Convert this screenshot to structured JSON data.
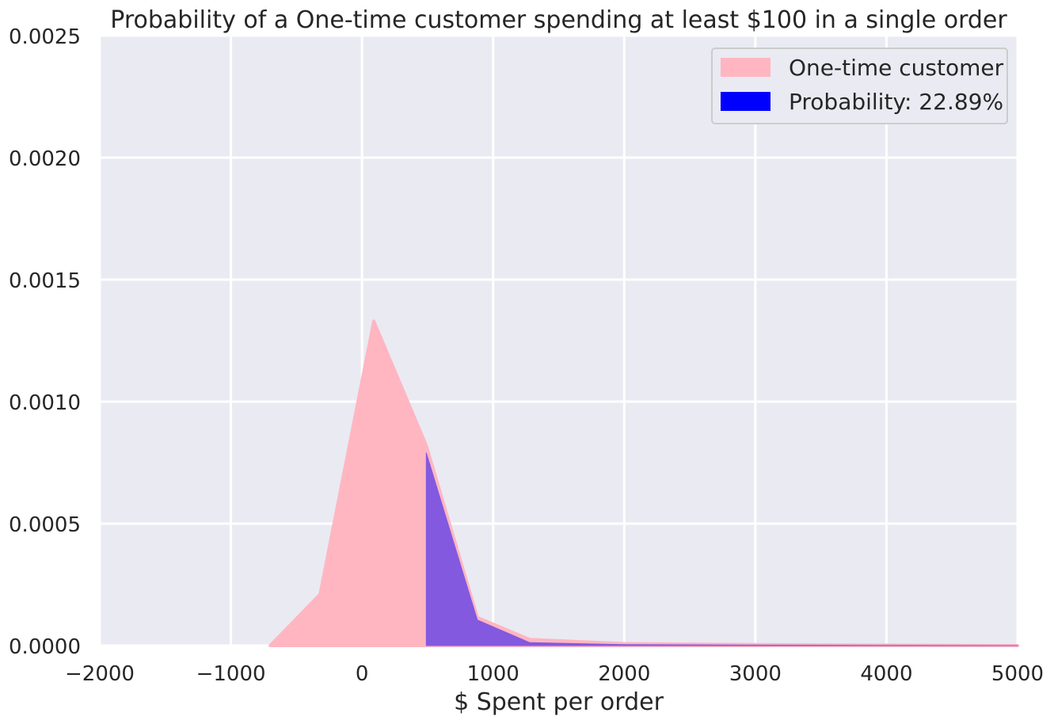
{
  "chart_data": {
    "type": "area",
    "title": "Probability of a One-time customer spending at least $100 in a single order",
    "xlabel": "$ Spent per order",
    "ylabel": "",
    "xlim": [
      -2000,
      5000
    ],
    "ylim": [
      0,
      0.0025
    ],
    "grid": true,
    "legend_placement": "top-right",
    "x_ticks": [
      "−2000",
      "−1000",
      "0",
      "1000",
      "2000",
      "3000",
      "4000",
      "5000"
    ],
    "y_ticks": [
      "0.0000",
      "0.0005",
      "0.0010",
      "0.0015",
      "0.0020",
      "0.0025"
    ],
    "x_tick_values": [
      -2000,
      -1000,
      0,
      1000,
      2000,
      3000,
      4000,
      5000
    ],
    "y_tick_values": [
      0,
      0.0005,
      0.001,
      0.0015,
      0.002,
      0.0025
    ],
    "series": [
      {
        "name": "One-time customer",
        "color": "#ffb6c1",
        "x": [
          -700,
          -320,
          90,
          490,
          880,
          1280,
          2000,
          3000,
          4000,
          5000
        ],
        "y": [
          0,
          0.00021,
          0.00133,
          0.00082,
          0.000115,
          2.5e-05,
          8e-06,
          4e-06,
          2e-06,
          0
        ]
      },
      {
        "name": "Probability: 22.89%",
        "color": "#0000ff",
        "fill_color": "#8359df",
        "x": [
          490,
          490,
          880,
          1280,
          2000,
          3000,
          4000,
          5000
        ],
        "y": [
          0,
          0.00079,
          0.000105,
          1.2e-05,
          4e-06,
          2e-06,
          1e-06,
          0
        ]
      }
    ]
  }
}
